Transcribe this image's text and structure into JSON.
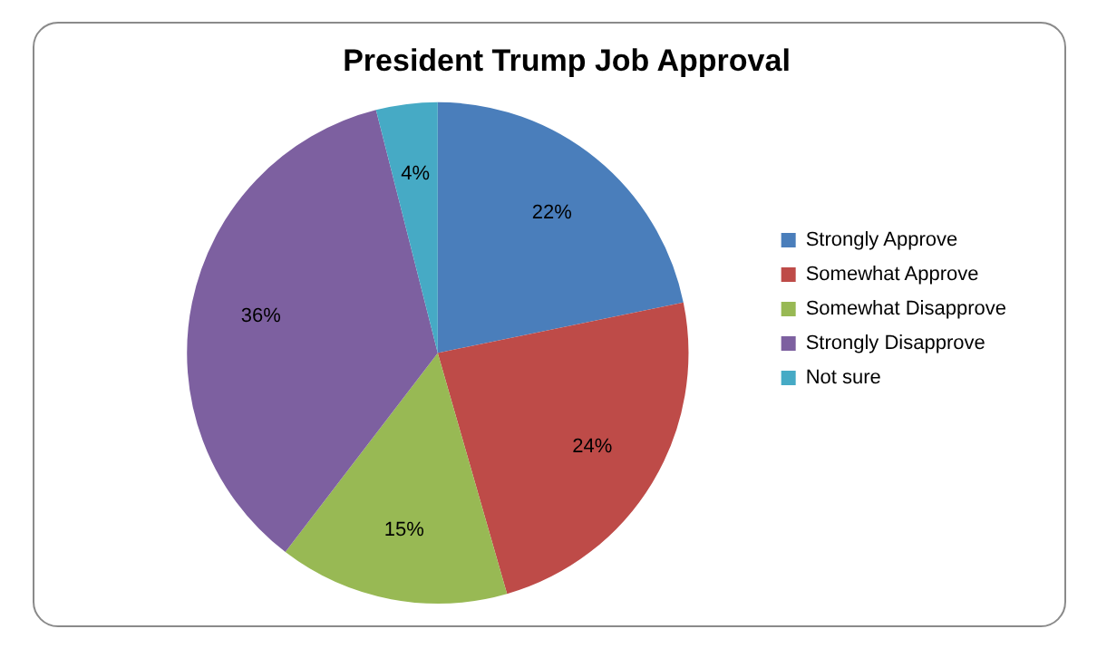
{
  "chart_data": {
    "type": "pie",
    "title": "President Trump Job Approval",
    "categories": [
      "Strongly Approve",
      "Somewhat Approve",
      "Somewhat Disapprove",
      "Strongly Disapprove",
      "Not sure"
    ],
    "values": [
      22,
      24,
      15,
      36,
      4
    ],
    "value_labels": [
      "22%",
      "24%",
      "15%",
      "36%",
      "4%"
    ],
    "colors": [
      "#4a7ebb",
      "#be4b48",
      "#98b954",
      "#7d60a0",
      "#46aac5"
    ],
    "legend": "right"
  }
}
